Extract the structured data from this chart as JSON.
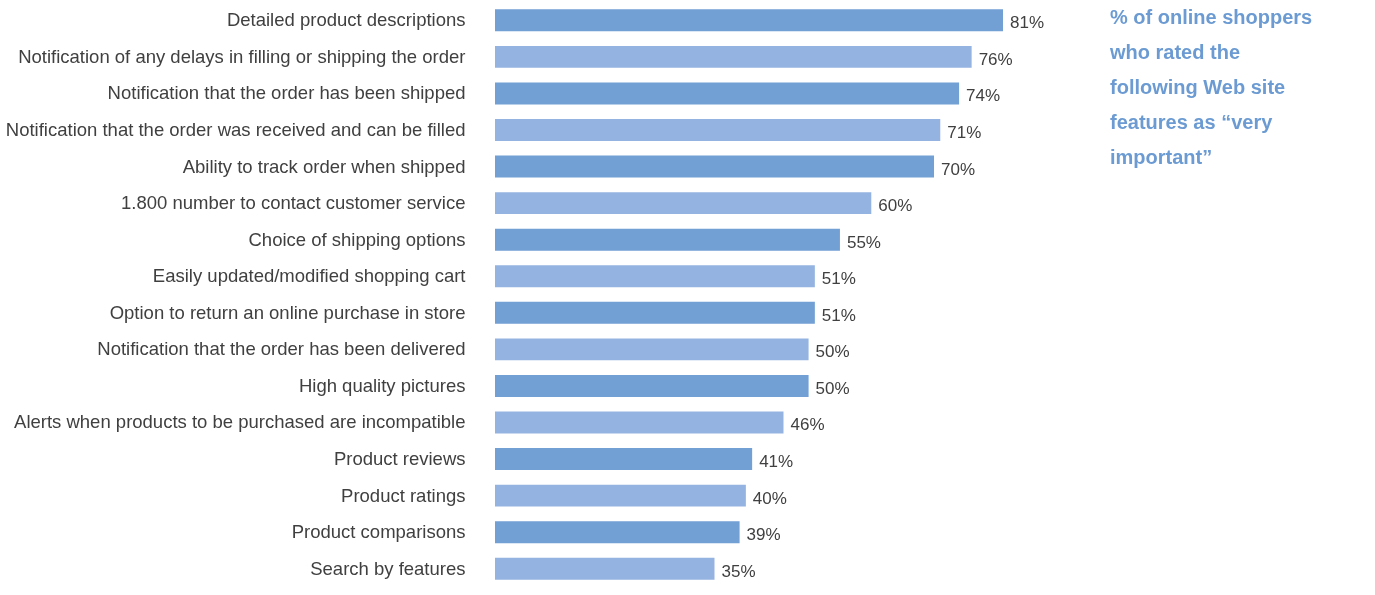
{
  "chart_data": {
    "type": "bar",
    "orientation": "horizontal",
    "title": "% of online shoppers who rated the following Web site features as “very important”",
    "categories": [
      "Detailed product descriptions",
      "Notification of any delays in filling or shipping the order",
      "Notification that the order has been shipped",
      "Notification that the order was received and can be filled",
      "Ability to track order when shipped",
      "1.800 number to contact customer service",
      "Choice of shipping options",
      "Easily updated/modified shopping cart",
      "Option to return an online purchase in store",
      "Notification that the order has been delivered",
      "High quality pictures",
      "Alerts when products to be purchased are incompatible",
      "Product reviews",
      "Product ratings",
      "Product comparisons",
      "Search by features"
    ],
    "values": [
      81,
      76,
      74,
      71,
      70,
      60,
      55,
      51,
      51,
      50,
      50,
      46,
      41,
      40,
      39,
      35
    ],
    "value_labels": [
      "81%",
      "76%",
      "74%",
      "71%",
      "70%",
      "60%",
      "55%",
      "51%",
      "51%",
      "50%",
      "50%",
      "46%",
      "41%",
      "40%",
      "39%",
      "35%"
    ],
    "colors": [
      "#729fd4",
      "#95b3e0",
      "#729fd4",
      "#95b3e0",
      "#729fd4",
      "#95b3e0",
      "#729fd4",
      "#95b3e0",
      "#729fd4",
      "#95b3e0",
      "#729fd4",
      "#95b3e0",
      "#729fd4",
      "#95b3e0",
      "#729fd4",
      "#95b3e0"
    ]
  }
}
